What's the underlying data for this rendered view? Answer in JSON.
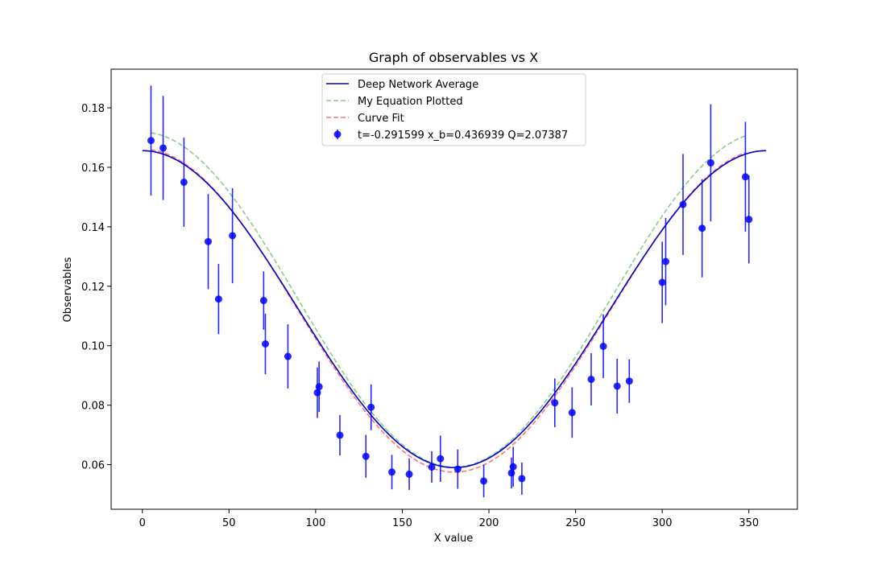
{
  "chart_data": {
    "type": "scatter",
    "title": "Graph of observables vs X",
    "xlabel": "X value",
    "ylabel": "Observables",
    "xlim": [
      -18,
      378
    ],
    "ylim": [
      0.045,
      0.193
    ],
    "xticks": [
      0,
      50,
      100,
      150,
      200,
      250,
      300,
      350
    ],
    "yticks": [
      0.06,
      0.08,
      0.1,
      0.12,
      0.14,
      0.16,
      0.18
    ],
    "ytick_labels": [
      "0.06",
      "0.08",
      "0.10",
      "0.12",
      "0.14",
      "0.16",
      "0.18"
    ],
    "grid": false,
    "legend_position": "top-center",
    "series": [
      {
        "name": "Deep Network Average",
        "kind": "line",
        "style": "solid",
        "color": "#0000cc",
        "x_range": [
          0,
          360
        ],
        "model": {
          "offset": 0.1123,
          "amp": 0.0533
        }
      },
      {
        "name": "My Equation Plotted",
        "kind": "line",
        "style": "dashed",
        "color": "#2ca02c",
        "x_range": [
          5,
          348
        ],
        "model": {
          "offset": 0.1155,
          "amp": 0.0563
        }
      },
      {
        "name": "Curve Fit",
        "kind": "line",
        "style": "dashed",
        "color": "#ff0000",
        "x_range": [
          5,
          348
        ],
        "model": {
          "offset": 0.1118,
          "amp": 0.0543
        }
      },
      {
        "name": "t=-0.291599 x_b=0.436939 Q=2.07387",
        "kind": "errorbar",
        "color": "#0000ff",
        "points": [
          {
            "x": 5,
            "y": 0.169,
            "err": 0.0185
          },
          {
            "x": 12,
            "y": 0.1665,
            "err": 0.0175
          },
          {
            "x": 24,
            "y": 0.155,
            "err": 0.015
          },
          {
            "x": 38,
            "y": 0.135,
            "err": 0.016
          },
          {
            "x": 44,
            "y": 0.1157,
            "err": 0.0118
          },
          {
            "x": 52,
            "y": 0.137,
            "err": 0.016
          },
          {
            "x": 70,
            "y": 0.1152,
            "err": 0.0098
          },
          {
            "x": 71,
            "y": 0.1006,
            "err": 0.0102
          },
          {
            "x": 84,
            "y": 0.0964,
            "err": 0.0108
          },
          {
            "x": 101,
            "y": 0.0842,
            "err": 0.0085
          },
          {
            "x": 102,
            "y": 0.0862,
            "err": 0.0085
          },
          {
            "x": 114,
            "y": 0.0699,
            "err": 0.0068
          },
          {
            "x": 129,
            "y": 0.0628,
            "err": 0.0072
          },
          {
            "x": 132,
            "y": 0.0793,
            "err": 0.0077
          },
          {
            "x": 144,
            "y": 0.0575,
            "err": 0.0058
          },
          {
            "x": 154,
            "y": 0.0568,
            "err": 0.0053
          },
          {
            "x": 167,
            "y": 0.0592,
            "err": 0.0053
          },
          {
            "x": 172,
            "y": 0.062,
            "err": 0.0078
          },
          {
            "x": 182,
            "y": 0.0585,
            "err": 0.0066
          },
          {
            "x": 197,
            "y": 0.0545,
            "err": 0.0055
          },
          {
            "x": 213,
            "y": 0.0572,
            "err": 0.0052
          },
          {
            "x": 214,
            "y": 0.0593,
            "err": 0.0067
          },
          {
            "x": 219,
            "y": 0.0553,
            "err": 0.0054
          },
          {
            "x": 238,
            "y": 0.0808,
            "err": 0.0082
          },
          {
            "x": 248,
            "y": 0.0775,
            "err": 0.0085
          },
          {
            "x": 259,
            "y": 0.0887,
            "err": 0.0088
          },
          {
            "x": 266,
            "y": 0.0998,
            "err": 0.0107
          },
          {
            "x": 274,
            "y": 0.0864,
            "err": 0.0092
          },
          {
            "x": 281,
            "y": 0.0881,
            "err": 0.0073
          },
          {
            "x": 300,
            "y": 0.1213,
            "err": 0.0137
          },
          {
            "x": 302,
            "y": 0.1283,
            "err": 0.0147
          },
          {
            "x": 312,
            "y": 0.1475,
            "err": 0.017
          },
          {
            "x": 323,
            "y": 0.1395,
            "err": 0.0165
          },
          {
            "x": 328,
            "y": 0.1615,
            "err": 0.0197
          },
          {
            "x": 348,
            "y": 0.1568,
            "err": 0.0185
          },
          {
            "x": 350,
            "y": 0.1425,
            "err": 0.0148
          }
        ]
      }
    ]
  }
}
